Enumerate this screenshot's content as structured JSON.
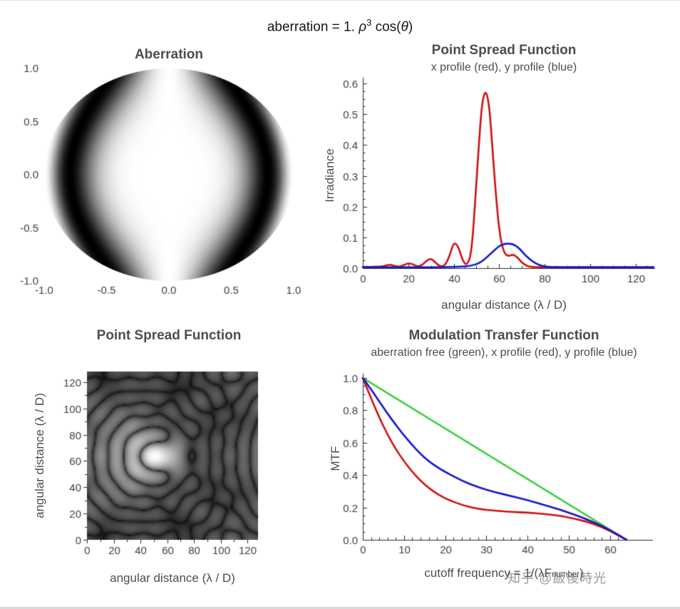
{
  "page": {
    "main_title": {
      "prefix": "aberration = 1. ",
      "rho": "ρ",
      "exponent": "3",
      "mid": " cos(",
      "theta": "θ",
      "close": ")"
    },
    "watermark": "知乎 @飯後時光"
  },
  "chart_data": [
    {
      "id": "aberration-pupil",
      "type": "heatmap",
      "title": "Aberration",
      "xlim": [
        -1,
        1
      ],
      "ylim": [
        -1,
        1
      ],
      "x_tick_values": [
        -1,
        -0.5,
        0,
        0.5,
        1
      ],
      "x_tick_labels": [
        "-1.0",
        "-0.5",
        "0.0",
        "0.5",
        "1.0"
      ],
      "y_tick_values": [
        -1,
        -0.5,
        0,
        0.5,
        1
      ],
      "y_tick_labels": [
        "-1.0",
        "-0.5",
        "0.0",
        "0.5",
        "1.0"
      ],
      "aberration_amplitude_waves": 1,
      "function": "brightness = (1 + cos(2π · a · ρ³ cosθ))/2 inside unit pupil, white outside"
    },
    {
      "id": "psf-profiles",
      "type": "line",
      "title": "Point Spread Function",
      "subtitle": "x profile (red), y profile (blue)",
      "xlabel": "angular distance (λ / D)",
      "ylabel": "Irradiance",
      "xlim": [
        0,
        128
      ],
      "ylim": [
        0,
        0.6
      ],
      "x_tick_values": [
        0,
        20,
        40,
        60,
        80,
        100,
        120
      ],
      "x_tick_labels": [
        "0",
        "20",
        "40",
        "60",
        "80",
        "100",
        "120"
      ],
      "y_tick_values": [
        0,
        0.1,
        0.2,
        0.3,
        0.4,
        0.5,
        0.6
      ],
      "y_tick_labels": [
        "0.0",
        "0.1",
        "0.2",
        "0.3",
        "0.4",
        "0.5",
        "0.6"
      ],
      "series": [
        {
          "name": "x profile",
          "color": "#cc1111",
          "x": [
            0,
            4,
            8,
            10,
            12,
            14,
            16,
            18,
            20,
            22,
            24,
            26,
            28,
            30,
            32,
            34,
            36,
            38,
            40,
            42,
            44,
            46,
            48,
            50,
            52,
            53,
            54,
            55,
            56,
            58,
            60,
            62,
            64,
            66,
            68,
            70,
            72,
            74,
            78,
            84,
            96,
            112,
            128
          ],
          "y": [
            0.004,
            0.004,
            0.005,
            0.008,
            0.012,
            0.007,
            0.004,
            0.01,
            0.016,
            0.013,
            0.005,
            0.009,
            0.024,
            0.032,
            0.018,
            0.005,
            0.007,
            0.035,
            0.085,
            0.072,
            0.022,
            0.008,
            0.055,
            0.28,
            0.5,
            0.555,
            0.575,
            0.555,
            0.5,
            0.29,
            0.12,
            0.05,
            0.038,
            0.045,
            0.036,
            0.018,
            0.008,
            0.004,
            0.003,
            0.003,
            0.003,
            0.003,
            0.003
          ]
        },
        {
          "name": "y profile",
          "color": "#1515cc",
          "x": [
            0,
            16,
            32,
            40,
            44,
            48,
            52,
            56,
            60,
            62,
            64,
            66,
            68,
            70,
            72,
            76,
            80,
            84,
            96,
            112,
            128
          ],
          "y": [
            0.003,
            0.003,
            0.003,
            0.004,
            0.005,
            0.008,
            0.018,
            0.045,
            0.072,
            0.078,
            0.08,
            0.078,
            0.07,
            0.055,
            0.038,
            0.014,
            0.005,
            0.003,
            0.003,
            0.003,
            0.003
          ]
        }
      ]
    },
    {
      "id": "psf-image",
      "type": "heatmap",
      "title": "Point Spread Function",
      "xlabel": "angular distance (λ / D)",
      "ylabel": "angular distance (λ / D)",
      "xlim": [
        0,
        128
      ],
      "ylim": [
        0,
        128
      ],
      "x_tick_values": [
        0,
        20,
        40,
        60,
        80,
        100,
        120
      ],
      "x_tick_labels": [
        "0",
        "20",
        "40",
        "60",
        "80",
        "100",
        "120"
      ],
      "y_tick_values": [
        0,
        20,
        40,
        60,
        80,
        100,
        120
      ],
      "y_tick_labels": [
        "0",
        "20",
        "40",
        "60",
        "80",
        "100",
        "120"
      ],
      "grid_size": 128,
      "pupil_radius_px": 6.4,
      "display_gamma": 0.18,
      "description": "log-stretched diffraction PSF of 1-wave coma: bright core near (55, 64), comet flare and arc-shaped rings opening toward smaller x"
    },
    {
      "id": "mtf",
      "type": "line",
      "title": "Modulation Transfer Function",
      "subtitle": "aberration free (green), x profile (red), y profile (blue)",
      "xlabel_prefix": "cutoff frequency = 1/(λF",
      "xlabel_sub": "number",
      "xlabel_suffix": ")",
      "ylabel": "MTF",
      "xlim": [
        0,
        64
      ],
      "ylim": [
        0,
        1
      ],
      "x_tick_values": [
        0,
        10,
        20,
        30,
        40,
        50,
        60
      ],
      "x_tick_labels": [
        "0",
        "10",
        "20",
        "30",
        "40",
        "50",
        "60"
      ],
      "y_tick_values": [
        0,
        0.2,
        0.4,
        0.6,
        0.8,
        1.0
      ],
      "y_tick_labels": [
        "0.0",
        "0.2",
        "0.4",
        "0.6",
        "0.8",
        "1.0"
      ],
      "series": [
        {
          "name": "aberration free",
          "color": "#33cc33",
          "x": [
            0,
            64
          ],
          "y": [
            1,
            0
          ]
        },
        {
          "name": "x profile",
          "color": "#cc1111",
          "x": [
            0,
            2,
            4,
            6,
            8,
            10,
            12,
            14,
            16,
            18,
            20,
            24,
            28,
            32,
            36,
            40,
            44,
            48,
            52,
            56,
            60,
            64
          ],
          "y": [
            1.0,
            0.875,
            0.755,
            0.65,
            0.56,
            0.485,
            0.42,
            0.365,
            0.32,
            0.285,
            0.255,
            0.215,
            0.19,
            0.18,
            0.172,
            0.168,
            0.16,
            0.148,
            0.128,
            0.1,
            0.055,
            0.0
          ]
        },
        {
          "name": "y profile",
          "color": "#1515cc",
          "x": [
            0,
            2,
            4,
            6,
            8,
            10,
            12,
            14,
            16,
            18,
            20,
            24,
            28,
            32,
            36,
            40,
            44,
            48,
            52,
            56,
            60,
            64
          ],
          "y": [
            1.0,
            0.93,
            0.855,
            0.78,
            0.71,
            0.645,
            0.585,
            0.53,
            0.485,
            0.45,
            0.42,
            0.365,
            0.325,
            0.295,
            0.27,
            0.245,
            0.215,
            0.185,
            0.15,
            0.11,
            0.06,
            0.0
          ]
        }
      ]
    }
  ]
}
